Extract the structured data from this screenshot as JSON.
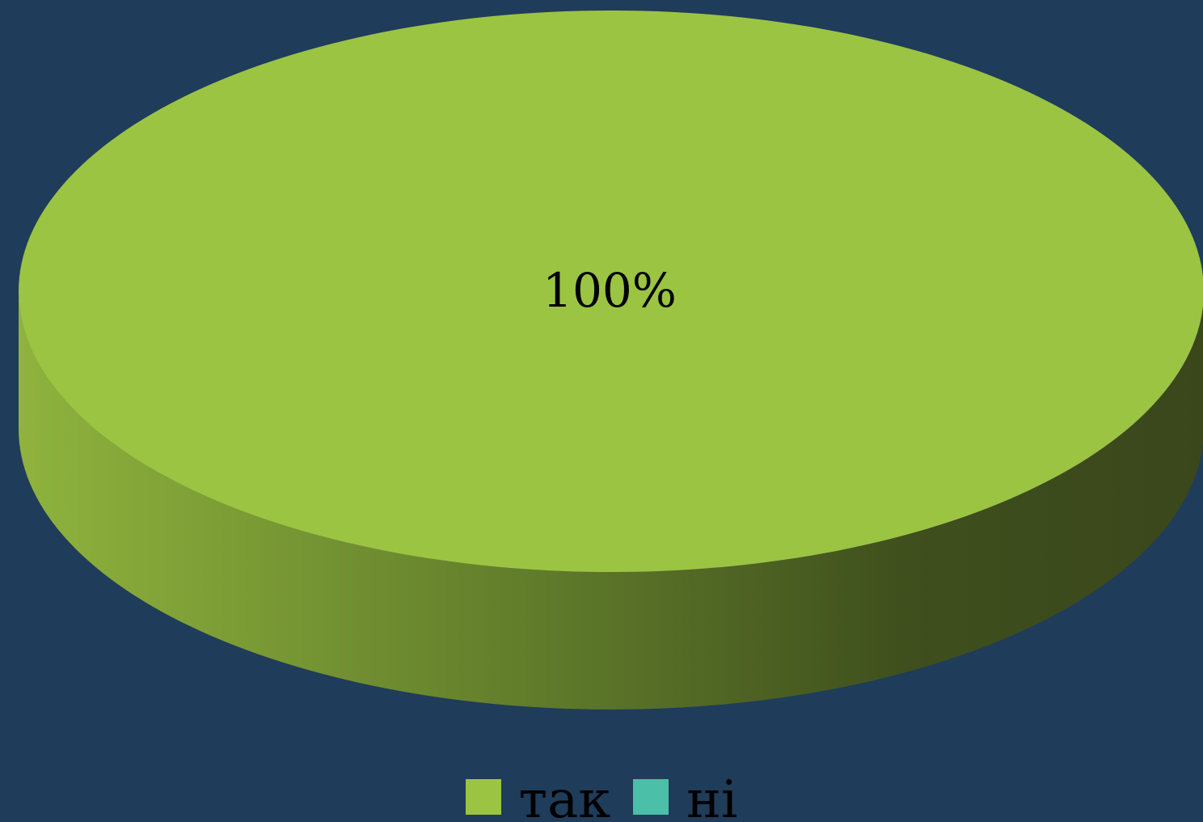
{
  "chart_data": {
    "type": "pie",
    "style": "3d",
    "categories": [
      "так",
      "ні"
    ],
    "values": [
      100,
      0
    ],
    "data_labels": [
      "100%"
    ],
    "legend": {
      "placement": "bottom",
      "entries": [
        {
          "label": "так",
          "color": "#9bc443"
        },
        {
          "label": "ні",
          "color": "#4bbfa8"
        }
      ]
    }
  },
  "colors": {
    "background": "#1f3c5a",
    "slice_top": "#9bc443",
    "slice_side_light": "#8fb33d",
    "slice_side_dark": "#3a471b"
  }
}
